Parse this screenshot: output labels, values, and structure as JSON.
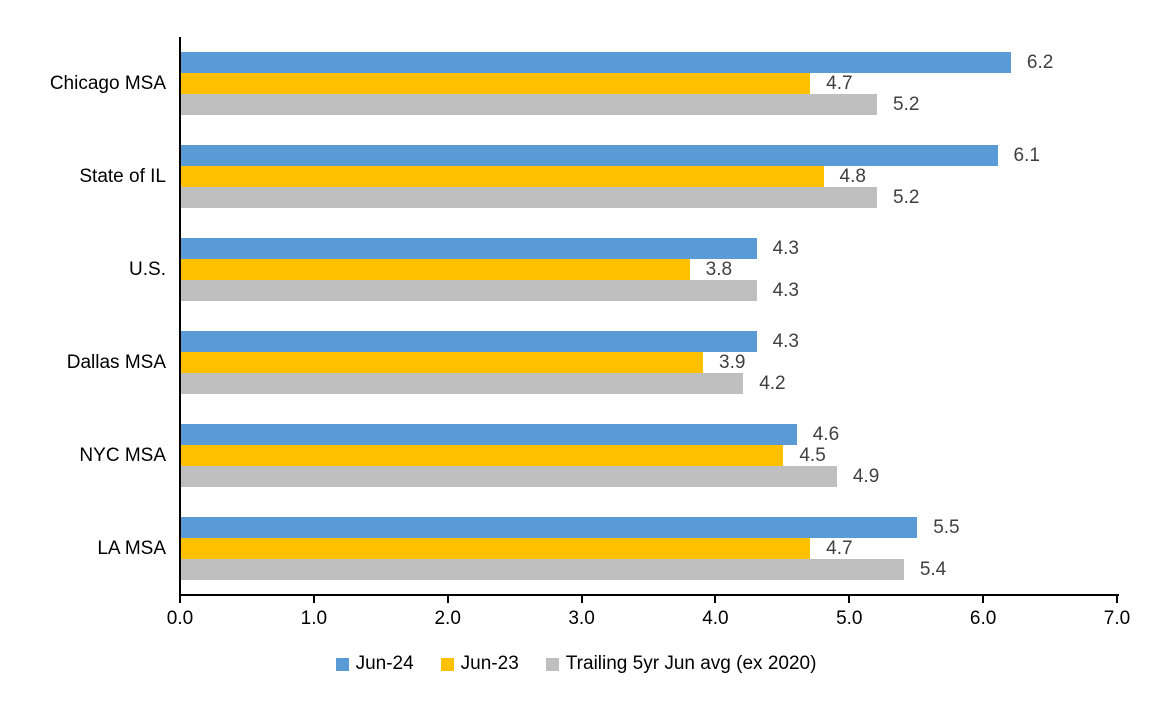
{
  "chart_data": {
    "type": "bar",
    "orientation": "horizontal",
    "title": "",
    "categories": [
      "Chicago MSA",
      "State of IL",
      "U.S.",
      "Dallas MSA",
      "NYC MSA",
      "LA MSA"
    ],
    "series": [
      {
        "name": "Jun-24",
        "color": "#5B9BD5",
        "values": [
          6.2,
          6.1,
          4.3,
          4.3,
          4.6,
          5.5
        ]
      },
      {
        "name": "Jun-23",
        "color": "#FFC000",
        "values": [
          4.7,
          4.8,
          3.8,
          3.9,
          4.5,
          4.7
        ]
      },
      {
        "name": "Trailing 5yr Jun avg (ex 2020)",
        "color": "#BFBFBF",
        "values": [
          5.2,
          5.2,
          4.3,
          4.2,
          4.9,
          5.4
        ]
      }
    ],
    "data_labels": [
      [
        "6.2",
        "6.1",
        "4.3",
        "4.3",
        "4.6",
        "5.5"
      ],
      [
        "4.7",
        "4.8",
        "3.8",
        "3.9",
        "4.5",
        "4.7"
      ],
      [
        "5.2",
        "5.2",
        "4.3",
        "4.2",
        "4.9",
        "5.4"
      ]
    ],
    "xlim": [
      0.0,
      7.0
    ],
    "x_ticks": [
      "0.0",
      "1.0",
      "2.0",
      "3.0",
      "4.0",
      "5.0",
      "6.0",
      "7.0"
    ],
    "xlabel": "",
    "ylabel": "",
    "legend_position": "bottom",
    "grid": false
  },
  "styles": {
    "background": "#FFFFFF",
    "axis_color": "#000000",
    "data_label_color": "#404040",
    "text_color": "#000000"
  }
}
